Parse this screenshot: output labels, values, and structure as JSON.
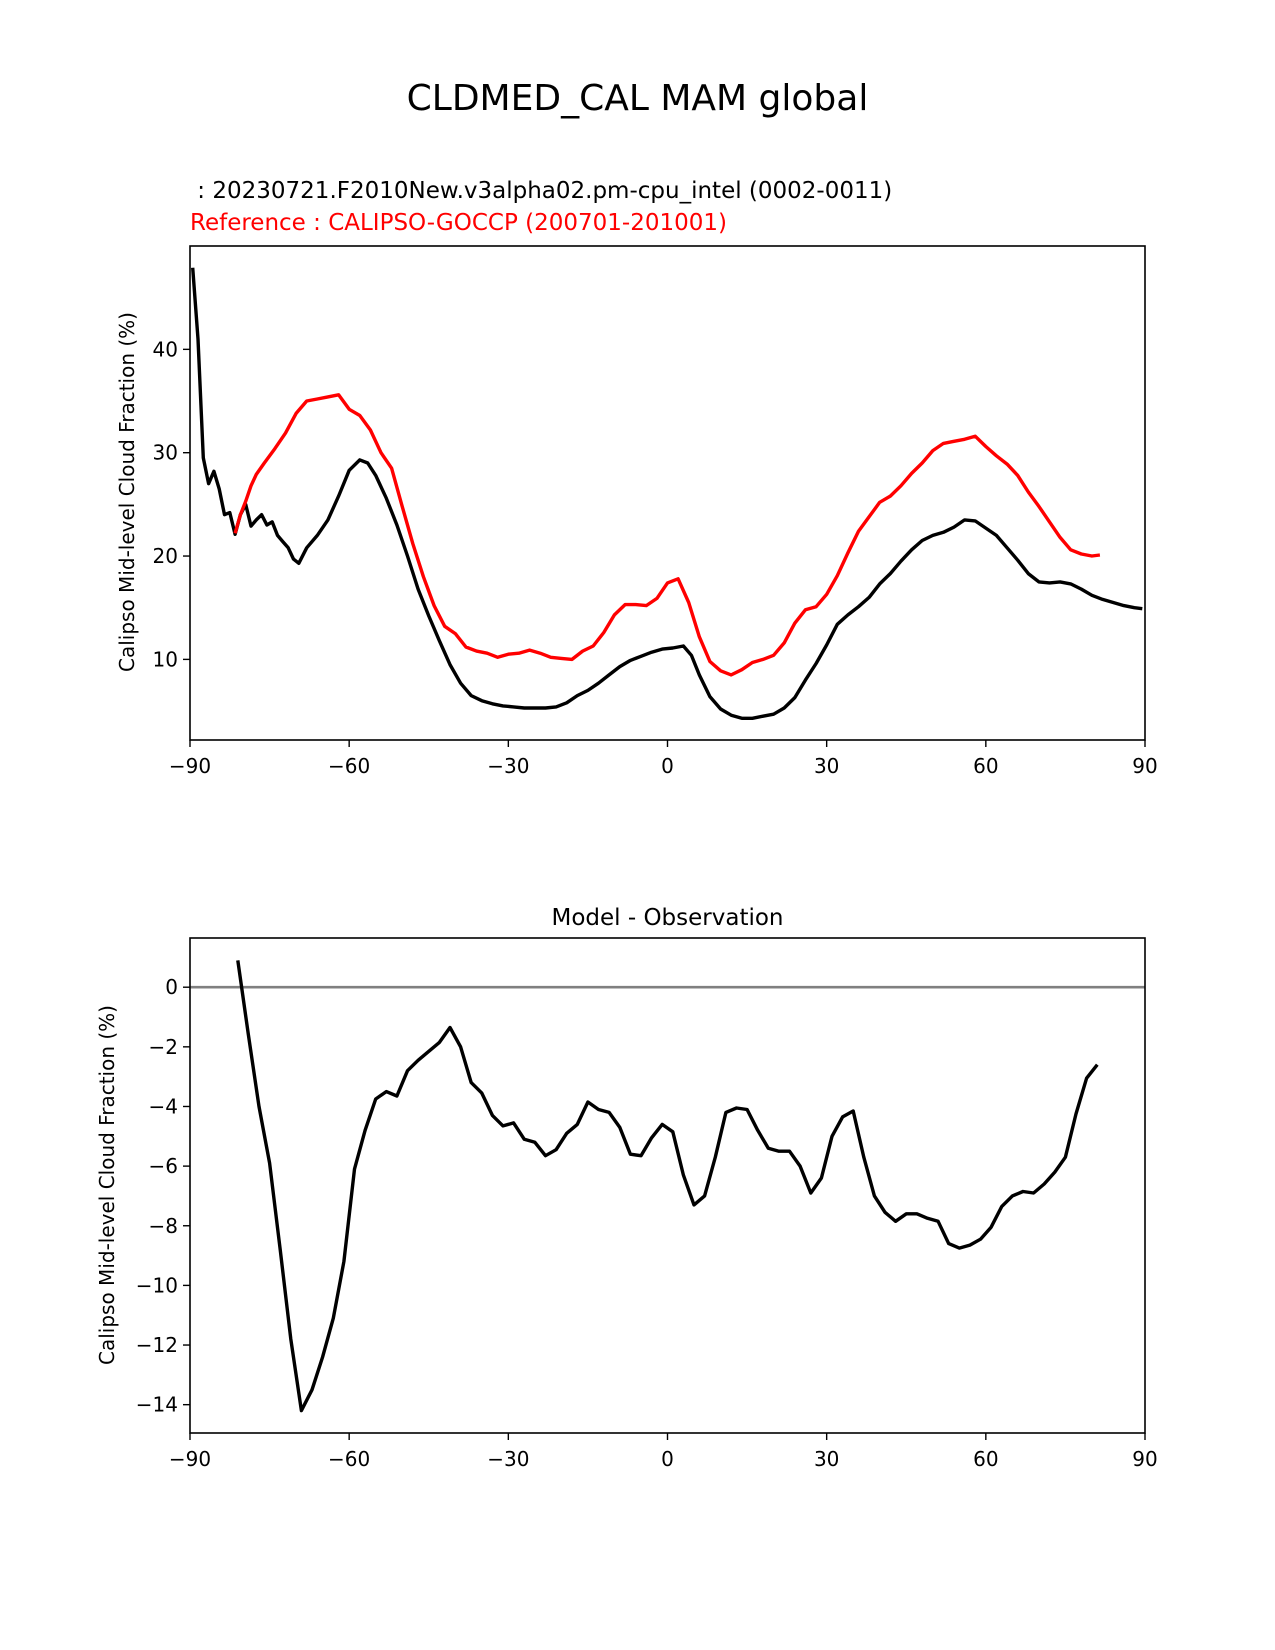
{
  "suptitle": "CLDMED_CAL MAM global",
  "colors": {
    "model": "#000000",
    "reference": "#ff0000",
    "zero_line": "#808080"
  },
  "chart_data": [
    {
      "type": "line",
      "title_model": " : 20230721.F2010New.v3alpha02.pm-cpu_intel (0002-0011)",
      "title_reference": "Reference : CALIPSO-GOCCP (200701-201001)",
      "xlabel": "",
      "ylabel": "Calipso Mid-level Cloud Fraction (%)",
      "xlim": [
        -90,
        90
      ],
      "ylim": [
        2.2,
        50.0
      ],
      "xticks": [
        -90,
        -60,
        -30,
        0,
        30,
        60,
        90
      ],
      "xtick_labels": [
        "−90",
        "−60",
        "−30",
        "0",
        "30",
        "60",
        "90"
      ],
      "yticks": [
        10,
        20,
        30,
        40
      ],
      "ytick_labels": [
        "10",
        "20",
        "30",
        "40"
      ],
      "series": [
        {
          "name": "model",
          "color": "#000000",
          "x": [
            -89.5,
            -88.5,
            -87.5,
            -86.5,
            -85.5,
            -84.5,
            -83.5,
            -82.5,
            -81.5,
            -80.5,
            -79.5,
            -78.5,
            -77.5,
            -76.5,
            -75.5,
            -74.5,
            -73.5,
            -72.5,
            -71.5,
            -70.5,
            -69.5,
            -68,
            -66,
            -64,
            -62,
            -60,
            -58,
            -56.5,
            -55,
            -53,
            -51,
            -49,
            -47,
            -45,
            -43,
            -41,
            -39,
            -37,
            -35,
            -33,
            -31,
            -29,
            -27,
            -25,
            -23,
            -21,
            -19,
            -17,
            -15,
            -13,
            -11,
            -9,
            -7,
            -5,
            -3,
            -1,
            1,
            3,
            4.5,
            6,
            8,
            10,
            12,
            14,
            16,
            18,
            20,
            22,
            24,
            26,
            28,
            30,
            32,
            34,
            36,
            38,
            40,
            42,
            44,
            46,
            48,
            50,
            52,
            54,
            56,
            58,
            60,
            62,
            64,
            66,
            68,
            70,
            72,
            74,
            76,
            78,
            80,
            82,
            84,
            86,
            88,
            89.5
          ],
          "y": [
            47.9,
            41.0,
            29.5,
            27.0,
            28.2,
            26.5,
            24.0,
            24.2,
            22.1,
            24.0,
            25.0,
            22.9,
            23.5,
            24.0,
            23.0,
            23.3,
            22.0,
            21.4,
            20.8,
            19.7,
            19.3,
            20.8,
            22.0,
            23.5,
            25.8,
            28.3,
            29.3,
            29.0,
            27.8,
            25.6,
            23.0,
            20.0,
            16.8,
            14.2,
            11.8,
            9.5,
            7.7,
            6.5,
            6.0,
            5.7,
            5.5,
            5.4,
            5.3,
            5.3,
            5.3,
            5.4,
            5.8,
            6.5,
            7.0,
            7.7,
            8.5,
            9.3,
            9.9,
            10.3,
            10.7,
            11.0,
            11.1,
            11.3,
            10.4,
            8.5,
            6.4,
            5.2,
            4.6,
            4.3,
            4.3,
            4.5,
            4.7,
            5.3,
            6.3,
            8.0,
            9.6,
            11.4,
            13.4,
            14.3,
            15.1,
            16.0,
            17.3,
            18.3,
            19.5,
            20.6,
            21.5,
            22.0,
            22.3,
            22.8,
            23.5,
            23.4,
            22.7,
            22.0,
            20.8,
            19.6,
            18.3,
            17.5,
            17.4,
            17.5,
            17.3,
            16.8,
            16.2,
            15.8,
            15.5,
            15.2,
            15.0,
            14.9
          ]
        },
        {
          "name": "reference",
          "color": "#ff0000",
          "x": [
            -81.5,
            -80.5,
            -79.5,
            -78.5,
            -77.5,
            -76,
            -74,
            -72,
            -70,
            -68,
            -66,
            -64,
            -62,
            -60,
            -58,
            -56,
            -54,
            -52,
            -50,
            -48,
            -46,
            -44,
            -42,
            -40,
            -38,
            -36,
            -34,
            -32,
            -30,
            -28,
            -26,
            -24,
            -22,
            -20,
            -18,
            -16,
            -14,
            -12,
            -10,
            -8,
            -6,
            -4,
            -2,
            0,
            2,
            4,
            6,
            8,
            10,
            12,
            14,
            16,
            18,
            20,
            22,
            24,
            26,
            28,
            30,
            32,
            34,
            36,
            38,
            40,
            42,
            44,
            46,
            48,
            50,
            52,
            54,
            56,
            58,
            60,
            62,
            64,
            66,
            68,
            70,
            72,
            74,
            76,
            78,
            80,
            81.5
          ],
          "y": [
            22.2,
            24.0,
            25.3,
            26.8,
            27.9,
            29.0,
            30.4,
            31.9,
            33.8,
            35.0,
            35.2,
            35.4,
            35.6,
            34.2,
            33.6,
            32.2,
            30.0,
            28.5,
            24.8,
            21.2,
            18.0,
            15.2,
            13.2,
            12.5,
            11.2,
            10.8,
            10.6,
            10.2,
            10.5,
            10.6,
            10.9,
            10.6,
            10.2,
            10.1,
            10.0,
            10.8,
            11.3,
            12.6,
            14.3,
            15.3,
            15.3,
            15.2,
            15.9,
            17.4,
            17.8,
            15.5,
            12.2,
            9.8,
            8.9,
            8.5,
            9.0,
            9.7,
            10.0,
            10.4,
            11.6,
            13.5,
            14.8,
            15.1,
            16.3,
            18.1,
            20.3,
            22.4,
            23.8,
            25.2,
            25.8,
            26.8,
            28.0,
            29.0,
            30.2,
            30.9,
            31.1,
            31.3,
            31.6,
            30.6,
            29.7,
            28.9,
            27.8,
            26.2,
            24.8,
            23.3,
            21.8,
            20.6,
            20.2,
            20.0,
            20.1
          ]
        }
      ]
    },
    {
      "type": "line",
      "title": "Model - Observation",
      "xlabel": "",
      "ylabel": "Calipso Mid-level Cloud Fraction (%)",
      "xlim": [
        -90,
        90
      ],
      "ylim": [
        -14.95,
        1.65
      ],
      "xticks": [
        -90,
        -60,
        -30,
        0,
        30,
        60,
        90
      ],
      "xtick_labels": [
        "−90",
        "−60",
        "−30",
        "0",
        "30",
        "60",
        "90"
      ],
      "yticks": [
        0,
        -2,
        -4,
        -6,
        -8,
        -10,
        -12,
        -14
      ],
      "ytick_labels": [
        "0",
        "−2",
        "−4",
        "−6",
        "−8",
        "−10",
        "−12",
        "−14"
      ],
      "hline": 0,
      "series": [
        {
          "name": "difference",
          "color": "#000000",
          "x": [
            -81,
            -79,
            -77,
            -75,
            -73,
            -71,
            -69,
            -67,
            -65,
            -63,
            -61,
            -59,
            -57,
            -55,
            -53,
            -51,
            -49,
            -47,
            -45,
            -43,
            -41,
            -39,
            -37,
            -35,
            -33,
            -31,
            -29,
            -27,
            -25,
            -23,
            -21,
            -19,
            -17,
            -15,
            -13,
            -11,
            -9,
            -7,
            -5,
            -3,
            -1,
            1,
            3,
            5,
            7,
            9,
            11,
            13,
            15,
            17,
            19,
            21,
            23,
            25,
            27,
            29,
            31,
            33,
            35,
            37,
            39,
            41,
            43,
            45,
            47,
            49,
            51,
            53,
            55,
            57,
            59,
            61,
            63,
            65,
            67,
            69,
            71,
            73,
            75,
            77,
            79,
            81
          ],
          "y": [
            0.9,
            -1.6,
            -4.0,
            -5.9,
            -8.8,
            -11.8,
            -14.2,
            -13.5,
            -12.4,
            -11.1,
            -9.2,
            -6.1,
            -4.8,
            -3.75,
            -3.5,
            -3.65,
            -2.8,
            -2.45,
            -2.15,
            -1.85,
            -1.35,
            -2.0,
            -3.2,
            -3.55,
            -4.3,
            -4.65,
            -4.55,
            -5.1,
            -5.2,
            -5.65,
            -5.45,
            -4.9,
            -4.6,
            -3.85,
            -4.1,
            -4.2,
            -4.7,
            -5.6,
            -5.65,
            -5.05,
            -4.6,
            -4.85,
            -6.3,
            -7.3,
            -7.0,
            -5.7,
            -4.2,
            -4.05,
            -4.1,
            -4.8,
            -5.4,
            -5.5,
            -5.5,
            -6.0,
            -6.9,
            -6.4,
            -5.0,
            -4.35,
            -4.15,
            -5.7,
            -7.0,
            -7.55,
            -7.85,
            -7.6,
            -7.6,
            -7.75,
            -7.85,
            -8.6,
            -8.75,
            -8.65,
            -8.45,
            -8.05,
            -7.35,
            -7.0,
            -6.85,
            -6.9,
            -6.6,
            -6.2,
            -5.7,
            -4.25,
            -3.05,
            -2.6
          ]
        }
      ]
    }
  ]
}
